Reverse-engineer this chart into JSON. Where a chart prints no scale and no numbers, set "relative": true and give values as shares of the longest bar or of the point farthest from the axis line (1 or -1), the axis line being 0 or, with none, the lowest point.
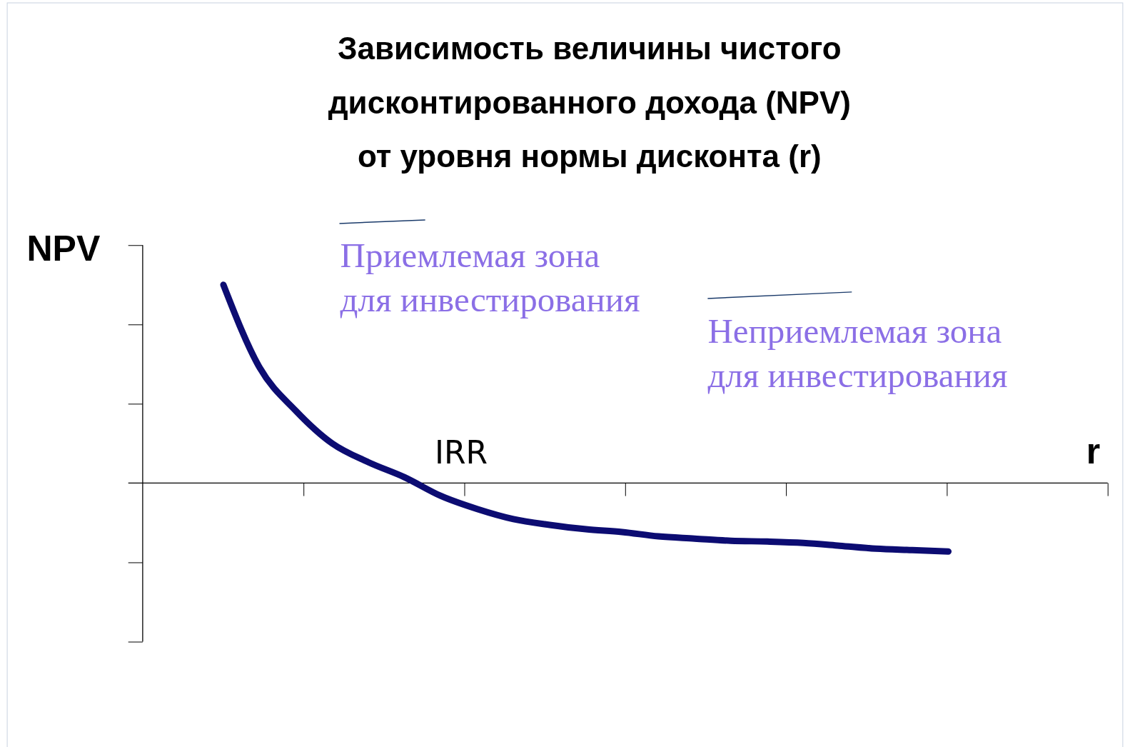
{
  "chart_data": {
    "type": "line",
    "relative": true,
    "title": "Зависимость величины чистого\nдисконтированного дохода (NPV)\nот уровня нормы дисконта (r)",
    "xlabel": "r",
    "ylabel": "NPV",
    "color": "#0c0c72",
    "marker": "none",
    "line_style": "solid",
    "tick_labels": false,
    "categories": [
      null,
      null,
      null,
      null,
      null,
      null,
      null,
      null,
      null,
      null,
      null,
      null,
      null,
      null,
      null,
      null,
      null,
      null,
      null,
      null,
      null
    ],
    "values": [
      1,
      0.582,
      0.364,
      0.2,
      0.105,
      0.029,
      -0.065,
      -0.131,
      -0.182,
      -0.211,
      -0.233,
      -0.247,
      -0.269,
      -0.28,
      -0.291,
      -0.295,
      -0.302,
      -0.316,
      -0.331,
      -0.338,
      -0.345
    ],
    "annotations": [
      "IRR",
      "Приемлемая зона\nдля инвестирования",
      "Неприемлемая зона\nдля инвестирования"
    ]
  }
}
